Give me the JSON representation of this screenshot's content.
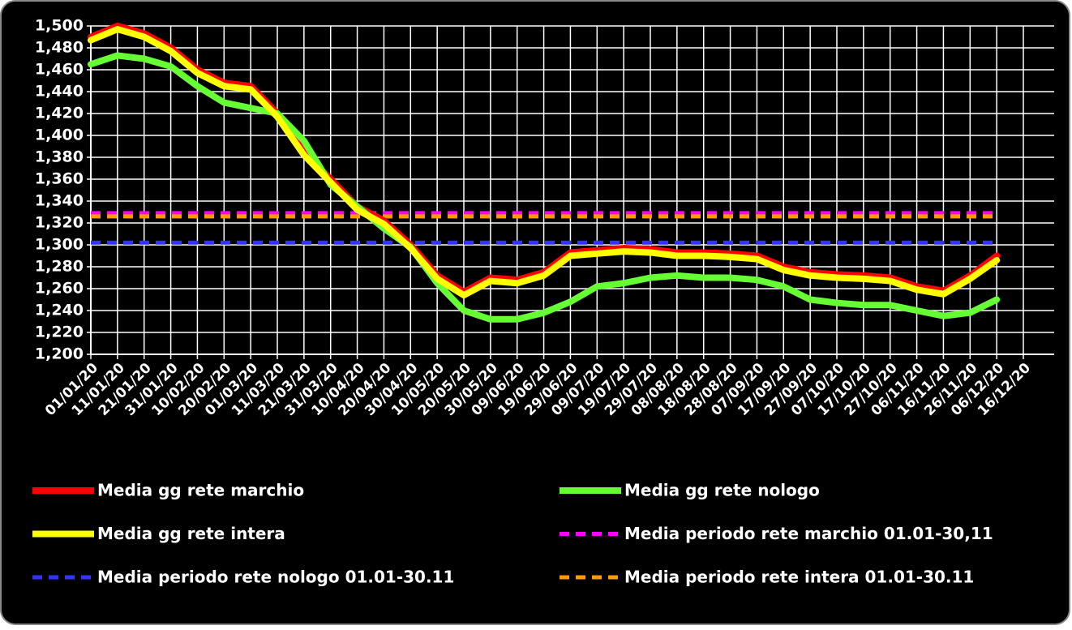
{
  "chart_data": {
    "type": "line",
    "categories": [
      "01/01/20",
      "11/01/20",
      "21/01/20",
      "31/01/20",
      "10/02/20",
      "20/02/20",
      "01/03/20",
      "11/03/20",
      "21/03/20",
      "31/03/20",
      "10/04/20",
      "20/04/20",
      "30/04/20",
      "10/05/20",
      "20/05/20",
      "30/05/20",
      "09/06/20",
      "19/06/20",
      "29/06/20",
      "09/07/20",
      "19/07/20",
      "29/07/20",
      "08/08/20",
      "18/08/20",
      "28/08/20",
      "07/09/20",
      "17/09/20",
      "27/09/20",
      "07/10/20",
      "17/10/20",
      "27/10/20",
      "06/11/20",
      "16/11/20",
      "26/11/20",
      "06/12/20",
      "16/12/20"
    ],
    "ylim": [
      1200,
      1500
    ],
    "yticks": [
      {
        "value": 1200,
        "label": "1,200"
      },
      {
        "value": 1220,
        "label": "1,220"
      },
      {
        "value": 1240,
        "label": "1,240"
      },
      {
        "value": 1260,
        "label": "1,260"
      },
      {
        "value": 1280,
        "label": "1,280"
      },
      {
        "value": 1300,
        "label": "1,300"
      },
      {
        "value": 1320,
        "label": "1,320"
      },
      {
        "value": 1340,
        "label": "1,340"
      },
      {
        "value": 1360,
        "label": "1,360"
      },
      {
        "value": 1380,
        "label": "1,380"
      },
      {
        "value": 1400,
        "label": "1,400"
      },
      {
        "value": 1420,
        "label": "1,420"
      },
      {
        "value": 1440,
        "label": "1,440"
      },
      {
        "value": 1460,
        "label": "1,460"
      },
      {
        "value": 1480,
        "label": "1,480"
      },
      {
        "value": 1500,
        "label": "1,500"
      }
    ],
    "grid": true,
    "series": [
      {
        "name": "Media gg rete marchio",
        "color": "#ff0000",
        "style": "solid",
        "values": [
          1490,
          1500,
          1493,
          1480,
          1460,
          1448,
          1445,
          1420,
          1385,
          1360,
          1335,
          1322,
          1300,
          1272,
          1257,
          1270,
          1268,
          1275,
          1293,
          1295,
          1297,
          1296,
          1293,
          1293,
          1292,
          1290,
          1280,
          1275,
          1273,
          1272,
          1270,
          1262,
          1258,
          1272,
          1290,
          null
        ]
      },
      {
        "name": "Media gg rete nologo",
        "color": "#66ff33",
        "style": "solid",
        "values": [
          1465,
          1473,
          1470,
          1463,
          1445,
          1430,
          1425,
          1420,
          1395,
          1355,
          1335,
          1315,
          1298,
          1265,
          1240,
          1232,
          1232,
          1238,
          1248,
          1262,
          1265,
          1270,
          1272,
          1270,
          1270,
          1268,
          1262,
          1250,
          1247,
          1245,
          1245,
          1240,
          1235,
          1238,
          1250,
          null
        ]
      },
      {
        "name": "Media gg rete intera",
        "color": "#ffff00",
        "style": "solid",
        "values": [
          1487,
          1497,
          1490,
          1477,
          1457,
          1445,
          1442,
          1417,
          1382,
          1357,
          1332,
          1319,
          1297,
          1269,
          1254,
          1267,
          1265,
          1272,
          1290,
          1292,
          1294,
          1293,
          1290,
          1290,
          1289,
          1287,
          1277,
          1272,
          1270,
          1269,
          1267,
          1259,
          1255,
          1269,
          1286,
          null
        ]
      },
      {
        "name": "Media periodo rete marchio 01.01-30,11",
        "color": "#ff00ff",
        "style": "dashed",
        "values": [
          1329,
          1329,
          1329,
          1329,
          1329,
          1329,
          1329,
          1329,
          1329,
          1329,
          1329,
          1329,
          1329,
          1329,
          1329,
          1329,
          1329,
          1329,
          1329,
          1329,
          1329,
          1329,
          1329,
          1329,
          1329,
          1329,
          1329,
          1329,
          1329,
          1329,
          1329,
          1329,
          1329,
          1329,
          1329,
          null
        ]
      },
      {
        "name": "Media periodo rete nologo 01.01-30.11",
        "color": "#3333ff",
        "style": "dashed",
        "values": [
          1302,
          1302,
          1302,
          1302,
          1302,
          1302,
          1302,
          1302,
          1302,
          1302,
          1302,
          1302,
          1302,
          1302,
          1302,
          1302,
          1302,
          1302,
          1302,
          1302,
          1302,
          1302,
          1302,
          1302,
          1302,
          1302,
          1302,
          1302,
          1302,
          1302,
          1302,
          1302,
          1302,
          1302,
          1302,
          null
        ]
      },
      {
        "name": "Media periodo rete intera 01.01-30.11",
        "color": "#ff9900",
        "style": "dashed",
        "values": [
          1326,
          1326,
          1326,
          1326,
          1326,
          1326,
          1326,
          1326,
          1326,
          1326,
          1326,
          1326,
          1326,
          1326,
          1326,
          1326,
          1326,
          1326,
          1326,
          1326,
          1326,
          1326,
          1326,
          1326,
          1326,
          1326,
          1326,
          1326,
          1326,
          1326,
          1326,
          1326,
          1326,
          1326,
          1326,
          null
        ]
      }
    ]
  }
}
